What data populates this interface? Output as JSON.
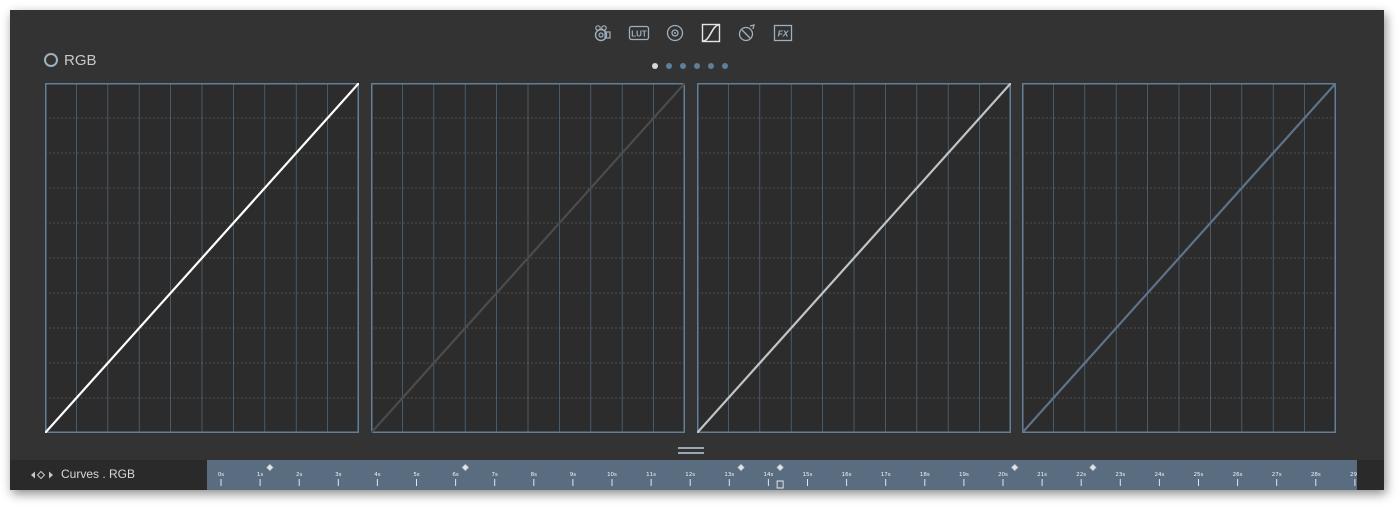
{
  "channel_label": "RGB",
  "toolbar": {
    "tools": [
      {
        "name": "camera-tool-icon",
        "active": false
      },
      {
        "name": "lut-tool-icon",
        "label": "LUT",
        "active": false
      },
      {
        "name": "color-wheel-tool-icon",
        "active": false
      },
      {
        "name": "curves-tool-icon",
        "active": true
      },
      {
        "name": "hue-tool-icon",
        "active": false
      },
      {
        "name": "fx-tool-icon",
        "label": "FX",
        "active": false
      }
    ]
  },
  "pager": {
    "count": 6,
    "active": 0
  },
  "curves": [
    {
      "channel": "rgb",
      "color": "#ffffff",
      "points": [
        [
          0,
          0
        ],
        [
          1,
          1
        ]
      ]
    },
    {
      "channel": "red",
      "color": "#4c4c4c",
      "points": [
        [
          0,
          0
        ],
        [
          1,
          1
        ]
      ]
    },
    {
      "channel": "green",
      "color": "#bfc4c8",
      "points": [
        [
          0,
          0
        ],
        [
          1,
          1
        ]
      ]
    },
    {
      "channel": "blue",
      "color": "#5e7389",
      "points": [
        [
          0,
          0
        ],
        [
          1,
          1
        ]
      ]
    }
  ],
  "colors": {
    "background": "#333333",
    "grid_bg": "#2c2c2c",
    "grid_line": "#617f98",
    "ruler": "#5a6d80"
  },
  "timeline": {
    "layer_name": "Curves . RGB",
    "ticks": [
      "0s",
      "1s",
      "2s",
      "3s",
      "4s",
      "5s",
      "6s",
      "7s",
      "8s",
      "9s",
      "10s",
      "11s",
      "12s",
      "13s",
      "14s",
      "15s",
      "16s",
      "17s",
      "18s",
      "19s",
      "20s",
      "21s",
      "22s",
      "23s",
      "24s",
      "25s",
      "26s",
      "27s",
      "28s",
      "29s"
    ],
    "keyframes": [
      1.25,
      6.25,
      13.3,
      14.3,
      20.3,
      22.3
    ],
    "playhead": 14.3
  }
}
